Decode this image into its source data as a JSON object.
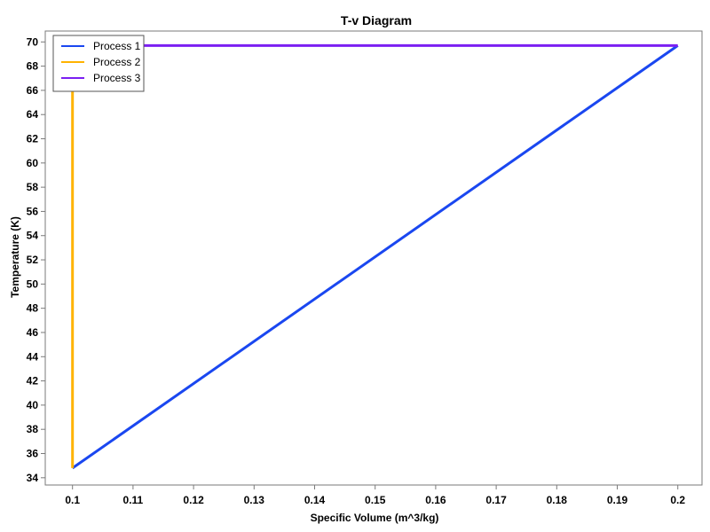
{
  "chart_data": {
    "type": "line",
    "title": "T-v Diagram",
    "xlabel": "Specific Volume (m^3/kg)",
    "ylabel": "Temperature (K)",
    "xlim": [
      0.0955,
      0.204
    ],
    "ylim": [
      33.4,
      70.9
    ],
    "x_ticks": [
      0.1,
      0.11,
      0.12,
      0.13,
      0.14,
      0.15,
      0.16,
      0.17,
      0.18,
      0.19,
      0.2
    ],
    "x_tick_labels": [
      "0.1",
      "0.11",
      "0.12",
      "0.13",
      "0.14",
      "0.15",
      "0.16",
      "0.17",
      "0.18",
      "0.19",
      "0.2"
    ],
    "y_ticks": [
      34,
      36,
      38,
      40,
      42,
      44,
      46,
      48,
      50,
      52,
      54,
      56,
      58,
      60,
      62,
      64,
      66,
      68,
      70
    ],
    "y_tick_labels": [
      "34",
      "36",
      "38",
      "40",
      "42",
      "44",
      "46",
      "48",
      "50",
      "52",
      "54",
      "56",
      "58",
      "60",
      "62",
      "64",
      "66",
      "68",
      "70"
    ],
    "grid": false,
    "legend_position": "top-left",
    "series": [
      {
        "name": "Process 1",
        "color": "#1a47f0",
        "x": [
          0.1,
          0.2
        ],
        "y": [
          34.8,
          69.7
        ]
      },
      {
        "name": "Process 2",
        "color": "#ffb300",
        "x": [
          0.1,
          0.1
        ],
        "y": [
          34.8,
          69.7
        ]
      },
      {
        "name": "Process 3",
        "color": "#7b1ff2",
        "x": [
          0.1,
          0.2
        ],
        "y": [
          69.7,
          69.7
        ]
      }
    ]
  }
}
